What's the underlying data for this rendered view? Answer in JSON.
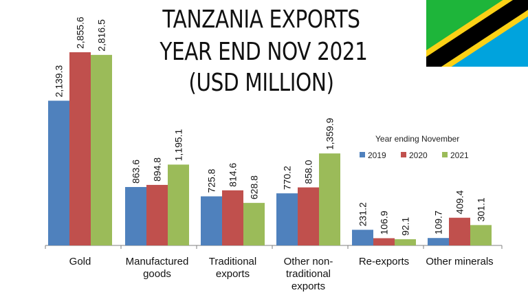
{
  "title_lines": [
    "TANZANIA EXPORTS",
    "YEAR END NOV 2021",
    "(USD MILLION)"
  ],
  "colors": {
    "2019": "#4f81bd",
    "2020": "#c0504d",
    "2021": "#9bbb59",
    "flag_green": "#1eb53a",
    "flag_blue": "#00a3dd",
    "flag_yellow": "#fcd116",
    "flag_black": "#000000"
  },
  "chart_data": {
    "type": "bar",
    "title": "TANZANIA EXPORTS YEAR END NOV 2021 (USD MILLION)",
    "legend_title": "Year ending November",
    "legend_position": "right",
    "categories": [
      [
        "Gold"
      ],
      [
        "Manufactured",
        "goods"
      ],
      [
        "Traditional",
        "exports"
      ],
      [
        "Other non-",
        "traditional",
        "exports"
      ],
      [
        "Re-exports"
      ],
      [
        "Other minerals"
      ]
    ],
    "series": [
      {
        "name": "2019",
        "values": [
          2139.3,
          863.6,
          725.8,
          770.2,
          231.2,
          109.7
        ],
        "labels": [
          "2,139.3",
          "863.6",
          "725.8",
          "770.2",
          "231.2",
          "109.7"
        ]
      },
      {
        "name": "2020",
        "values": [
          2855.6,
          894.8,
          814.6,
          858.0,
          106.9,
          409.4
        ],
        "labels": [
          "2,855.6",
          "894.8",
          "814.6",
          "858.0",
          "106.9",
          "409.4"
        ]
      },
      {
        "name": "2021",
        "values": [
          2816.5,
          1195.1,
          628.8,
          1359.9,
          92.1,
          301.1
        ],
        "labels": [
          "2,816.5",
          "1,195.1",
          "628.8",
          "1,359.9",
          "92.1",
          "301.1"
        ]
      }
    ],
    "ylim": [
      0,
      2855.6
    ],
    "grid": false
  }
}
